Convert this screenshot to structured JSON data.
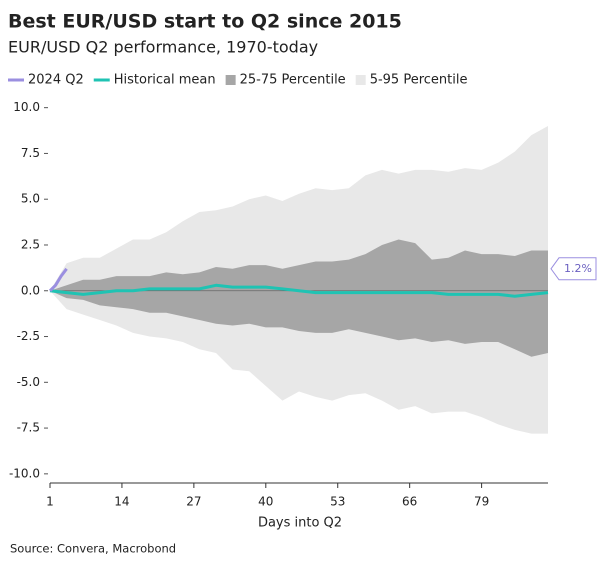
{
  "chart_data": {
    "type": "line",
    "title": "Best EUR/USD start to Q2 since 2015",
    "subtitle": "EUR/USD Q2 performance, 1970-today",
    "xlabel": "Days into Q2",
    "source": "Source: Convera, Macrobond",
    "x": [
      1,
      4,
      7,
      10,
      13,
      16,
      19,
      22,
      25,
      28,
      31,
      34,
      37,
      40,
      43,
      46,
      49,
      52,
      55,
      58,
      61,
      64,
      67,
      70,
      73,
      76,
      79,
      82,
      85,
      88,
      91
    ],
    "xlim": [
      1,
      91
    ],
    "xticks": [
      1,
      14,
      27,
      40,
      53,
      66,
      79
    ],
    "ylim": [
      -10.5,
      10.2
    ],
    "yticks": [
      {
        "value": 10,
        "label": "10.0"
      },
      7.5,
      {
        "value": 5,
        "label": "5.0"
      },
      2.5,
      {
        "value": 0,
        "label": "0.0"
      },
      -2.5,
      {
        "value": -5,
        "label": "-5.0"
      },
      -7.5,
      {
        "value": -10,
        "label": "-10.0"
      }
    ],
    "bands": [
      {
        "name": "5-95 Percentile",
        "color": "#e8e8e8",
        "high": [
          0,
          1.5,
          1.8,
          1.8,
          2.3,
          2.8,
          2.8,
          3.2,
          3.8,
          4.3,
          4.4,
          4.6,
          5.0,
          5.2,
          4.9,
          5.3,
          5.6,
          5.5,
          5.6,
          6.3,
          6.6,
          6.4,
          6.6,
          6.6,
          6.5,
          6.7,
          6.6,
          7.0,
          7.6,
          8.5,
          9.0
        ],
        "low": [
          0,
          -1.0,
          -1.3,
          -1.6,
          -1.9,
          -2.3,
          -2.5,
          -2.6,
          -2.8,
          -3.2,
          -3.4,
          -4.3,
          -4.4,
          -5.2,
          -6.0,
          -5.5,
          -5.8,
          -6.0,
          -5.7,
          -5.6,
          -6.0,
          -6.5,
          -6.3,
          -6.7,
          -6.6,
          -6.6,
          -6.9,
          -7.3,
          -7.6,
          -7.8,
          -7.8
        ]
      },
      {
        "name": "25-75 Percentile",
        "color": "#a6a6a6",
        "high": [
          0,
          0.3,
          0.6,
          0.6,
          0.8,
          0.8,
          0.8,
          1.0,
          0.9,
          1.0,
          1.3,
          1.2,
          1.4,
          1.4,
          1.2,
          1.4,
          1.6,
          1.6,
          1.7,
          2.0,
          2.5,
          2.8,
          2.6,
          1.7,
          1.8,
          2.2,
          2.0,
          2.0,
          1.9,
          2.2,
          2.2
        ],
        "low": [
          0,
          -0.4,
          -0.5,
          -0.8,
          -0.9,
          -1.0,
          -1.2,
          -1.2,
          -1.4,
          -1.6,
          -1.8,
          -1.9,
          -1.8,
          -2.0,
          -2.0,
          -2.2,
          -2.3,
          -2.3,
          -2.1,
          -2.3,
          -2.5,
          -2.7,
          -2.6,
          -2.8,
          -2.7,
          -2.9,
          -2.8,
          -2.8,
          -3.2,
          -3.6,
          -3.4
        ]
      }
    ],
    "series": [
      {
        "name": "2024 Q2",
        "color": "#9b8fe0",
        "x": [
          1,
          2,
          3,
          4
        ],
        "values": [
          0,
          0.3,
          0.8,
          1.2
        ]
      },
      {
        "name": "Historical mean",
        "color": "#1fc3b3",
        "values": [
          0,
          -0.1,
          -0.2,
          -0.1,
          0,
          0,
          0.1,
          0.1,
          0.1,
          0.1,
          0.3,
          0.2,
          0.2,
          0.2,
          0.1,
          0,
          -0.1,
          -0.1,
          -0.1,
          -0.1,
          -0.1,
          -0.1,
          -0.1,
          -0.1,
          -0.2,
          -0.2,
          -0.2,
          -0.2,
          -0.3,
          -0.2,
          -0.1
        ]
      }
    ],
    "annotation": {
      "text": "1.2%",
      "y": 1.2
    }
  }
}
